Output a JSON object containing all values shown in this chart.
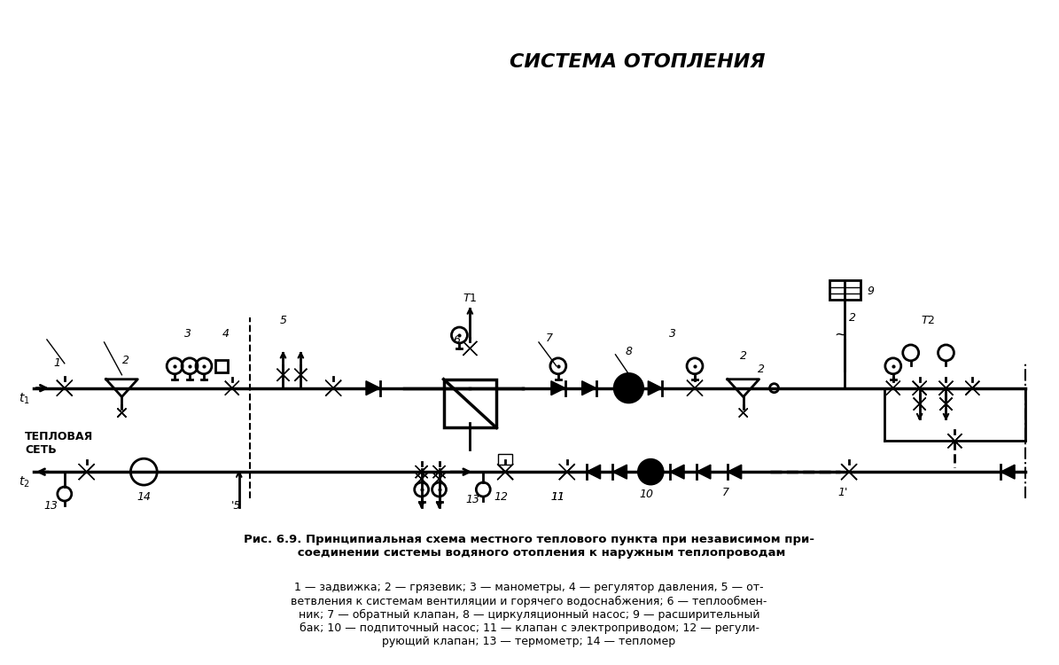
{
  "title": "СИСТЕМА ОТОПЛЕНИЯ",
  "caption_title": "Рис. 6.9. Принципиальная схема местного теплового пункта при независимом при-\n      соединении системы водяного отопления к наружным теплопроводам",
  "caption_body": "1 — задвижка; 2 — грязевик; 3 — манометры, 4 — регулятор давления, 5 — от-\nветвления к системам вентиляции и горячего водоснабжения; 6 — теплообмен-\nник; 7 — обратный клапан, 8 — циркуляционный насос; 9 — расширительный\nбак; 10 — подпиточный насос; 11 — клапан с электроприводом; 12 — регули-\nрующий клапан; 13 — термометр; 14 — тепломер",
  "bg_color": "#ffffff",
  "line_color": "#000000",
  "lw": 2.0,
  "thin_lw": 1.0
}
